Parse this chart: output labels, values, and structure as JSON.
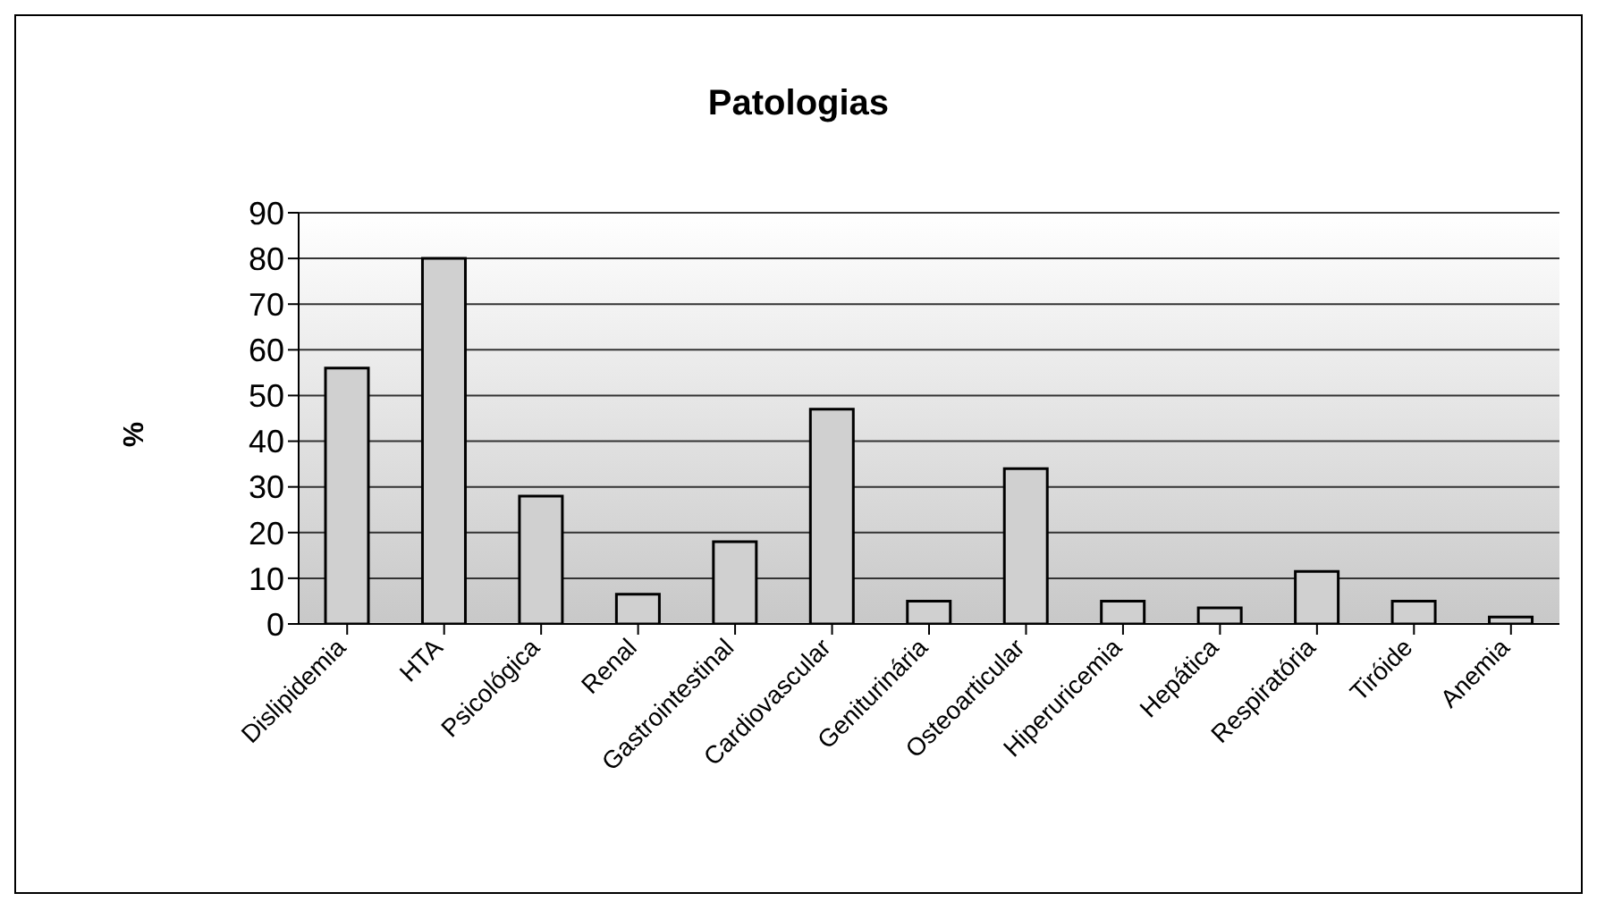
{
  "chart_data": {
    "type": "bar",
    "title": "Patologias",
    "ylabel": "%",
    "categories": [
      "Dislipidemia",
      "HTA",
      "Psicológica",
      "Renal",
      "Gastrointestinal",
      "Cardiovascular",
      "Geniturinária",
      "Osteoarticular",
      "Hiperuricemia",
      "Hepática",
      "Respiratória",
      "Tiróide",
      "Anemia"
    ],
    "values": [
      56,
      80,
      28,
      6.5,
      18,
      47,
      5,
      34,
      5,
      3.5,
      11.5,
      5,
      1.5
    ],
    "color": "#d0d0d0",
    "ylim": [
      0,
      90
    ],
    "yticks": [
      0,
      10,
      20,
      30,
      40,
      50,
      60,
      70,
      80,
      90
    ],
    "grid": "y"
  }
}
